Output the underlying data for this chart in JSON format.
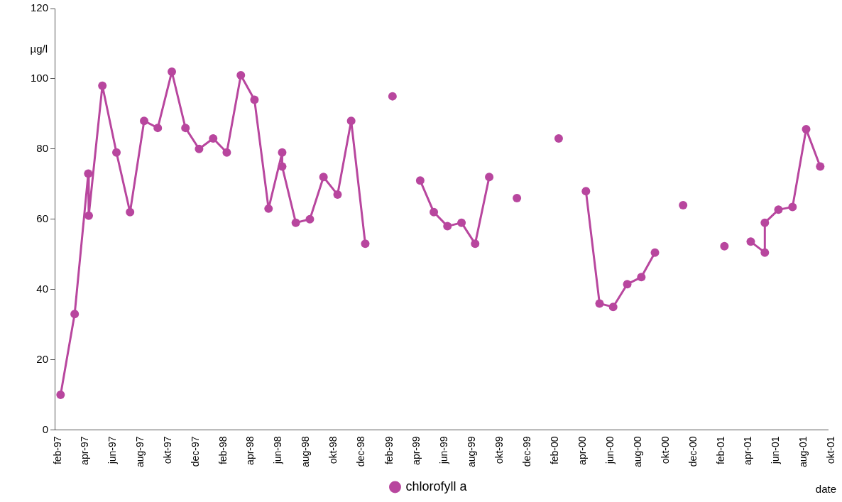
{
  "chart_data": {
    "type": "line",
    "xlabel": "date",
    "ylabel": "µg/l",
    "x": [
      "1997-02-14",
      "1997-03-17",
      "1997-04-16",
      "1997-04-17",
      "1997-05-17",
      "1997-06-17",
      "1997-07-17",
      "1997-08-17",
      "1997-09-16",
      "1997-10-17",
      "1997-11-16",
      "1997-12-16",
      "1998-01-16",
      "1998-02-15",
      "1998-03-18",
      "1998-04-17",
      "1998-05-18",
      "1998-06-17",
      "1998-06-17",
      "1998-07-17",
      "1998-08-17",
      "1998-09-16",
      "1998-10-17",
      "1998-11-16",
      "1998-12-17",
      "1999-01-15",
      "1999-02-15",
      "1999-03-15",
      "1999-04-17",
      "1999-05-17",
      "1999-06-16",
      "1999-07-17",
      "1999-08-16",
      "1999-09-16",
      "1999-10-15",
      "1999-11-16",
      "2000-01-01",
      "2000-02-16",
      "2000-03-15",
      "2000-04-16",
      "2000-05-16",
      "2000-06-15",
      "2000-07-16",
      "2000-08-16",
      "2000-09-15",
      "2000-10-15",
      "2000-11-16",
      "2001-01-01",
      "2001-02-15",
      "2001-03-15",
      "2001-04-14",
      "2001-05-15",
      "2001-05-15",
      "2001-06-14",
      "2001-07-15",
      "2001-08-14",
      "2001-09-14"
    ],
    "series": [
      {
        "name": "chlorofyll a",
        "color": "#b8469e",
        "values": [
          10,
          33,
          73,
          61,
          98,
          79,
          62,
          88,
          86,
          102,
          86,
          80,
          83,
          79,
          101,
          94,
          63,
          79,
          75,
          59,
          60,
          72,
          67,
          88,
          53,
          null,
          95,
          null,
          71,
          62,
          58,
          59,
          53,
          72,
          null,
          66,
          null,
          83,
          null,
          68,
          36,
          35,
          41.5,
          43.5,
          50.5,
          null,
          64,
          null,
          52.3,
          null,
          53.6,
          50.5,
          59,
          62.7,
          63.5,
          85.6,
          75
        ]
      }
    ],
    "xlim": [
      "1997-02-01",
      "2001-10-01"
    ],
    "xticks": [
      {
        "value": "1997-02-01",
        "label": "feb-97"
      },
      {
        "value": "1997-04-01",
        "label": "apr-97"
      },
      {
        "value": "1997-06-01",
        "label": "jun-97"
      },
      {
        "value": "1997-08-01",
        "label": "aug-97"
      },
      {
        "value": "1997-10-01",
        "label": "okt-97"
      },
      {
        "value": "1997-12-01",
        "label": "dec-97"
      },
      {
        "value": "1998-02-01",
        "label": "feb-98"
      },
      {
        "value": "1998-04-01",
        "label": "apr-98"
      },
      {
        "value": "1998-06-01",
        "label": "jun-98"
      },
      {
        "value": "1998-08-01",
        "label": "aug-98"
      },
      {
        "value": "1998-10-01",
        "label": "okt-98"
      },
      {
        "value": "1998-12-01",
        "label": "dec-98"
      },
      {
        "value": "1999-02-01",
        "label": "feb-99"
      },
      {
        "value": "1999-04-01",
        "label": "apr-99"
      },
      {
        "value": "1999-06-01",
        "label": "jun-99"
      },
      {
        "value": "1999-08-01",
        "label": "aug-99"
      },
      {
        "value": "1999-10-01",
        "label": "okt-99"
      },
      {
        "value": "1999-12-01",
        "label": "dec-99"
      },
      {
        "value": "2000-02-01",
        "label": "feb-00"
      },
      {
        "value": "2000-04-01",
        "label": "apr-00"
      },
      {
        "value": "2000-06-01",
        "label": "jun-00"
      },
      {
        "value": "2000-08-01",
        "label": "aug-00"
      },
      {
        "value": "2000-10-01",
        "label": "okt-00"
      },
      {
        "value": "2000-12-01",
        "label": "dec-00"
      },
      {
        "value": "2001-02-01",
        "label": "feb-01"
      },
      {
        "value": "2001-04-01",
        "label": "apr-01"
      },
      {
        "value": "2001-06-01",
        "label": "jun-01"
      },
      {
        "value": "2001-08-01",
        "label": "aug-01"
      },
      {
        "value": "2001-10-01",
        "label": "okt-01"
      }
    ],
    "ylim": [
      0,
      120
    ],
    "yticks": [
      0,
      20,
      40,
      60,
      80,
      100,
      120
    ],
    "grid": false,
    "legend": "bottom",
    "marker": "circle",
    "line_style": "solid"
  }
}
